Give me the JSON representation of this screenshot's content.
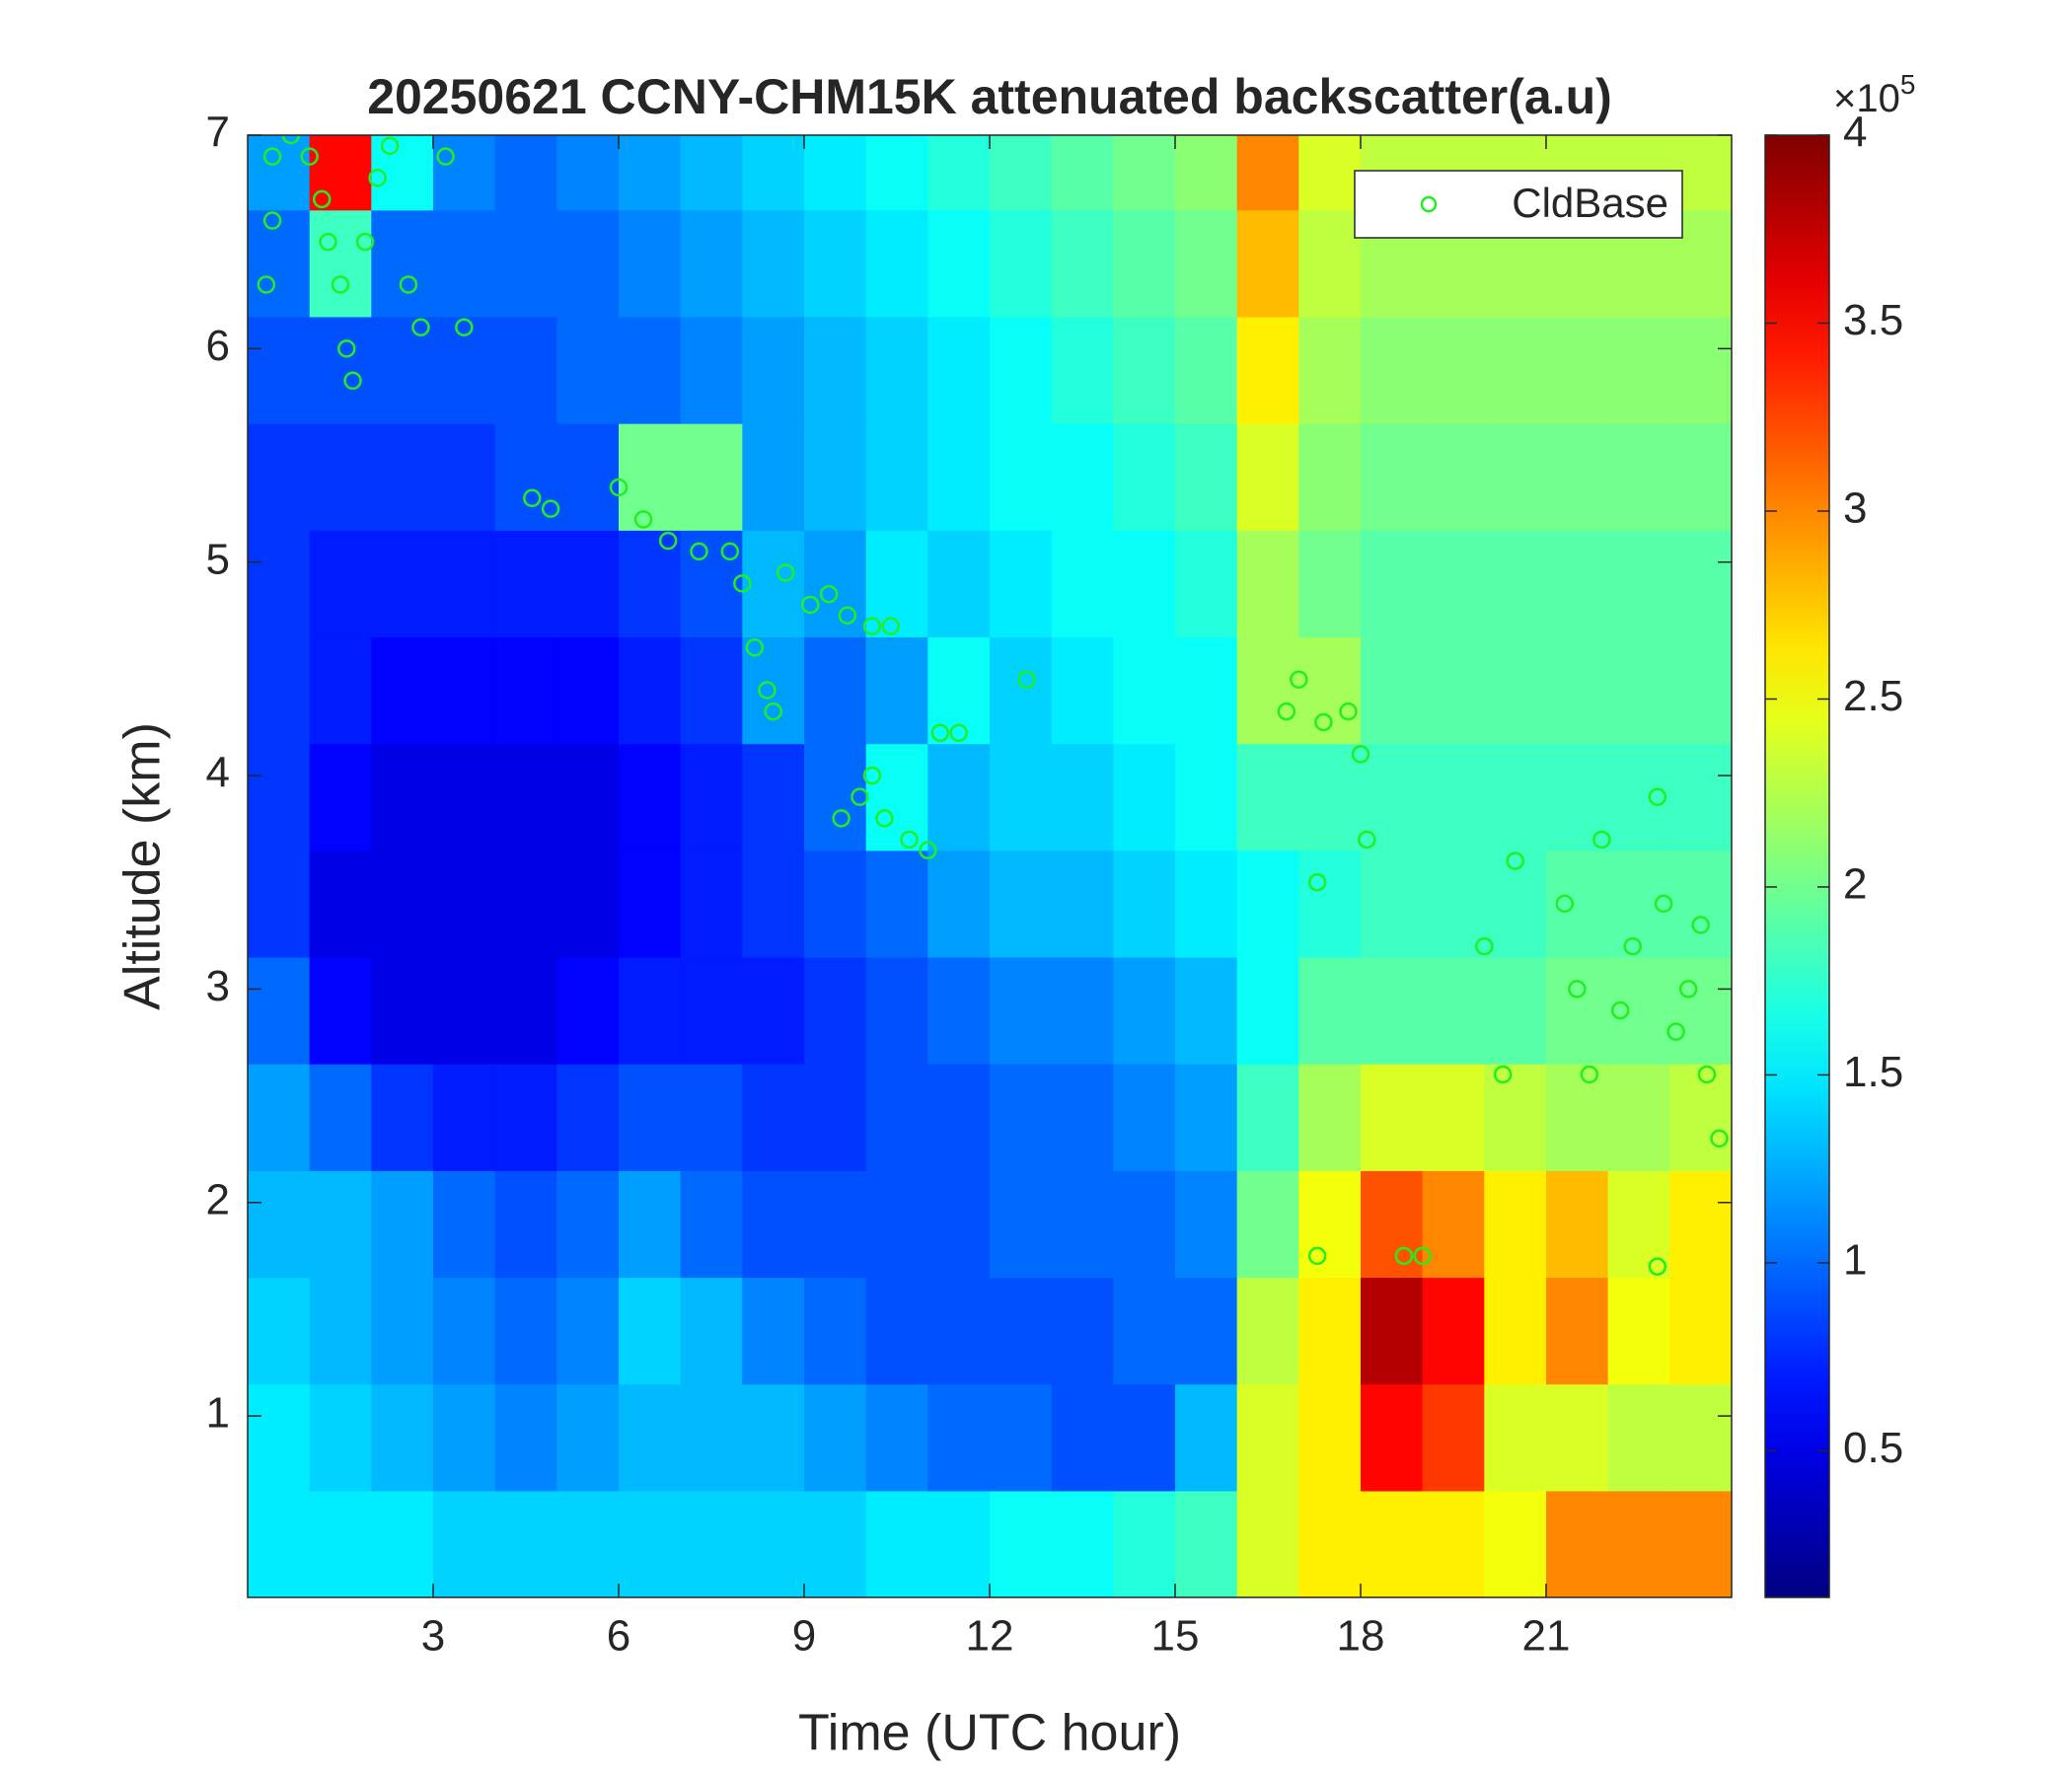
{
  "chart_data": {
    "type": "heatmap",
    "title": "20250621 CCNY-CHM15K attenuated backscatter(a.u)",
    "xlabel": "Time (UTC hour)",
    "ylabel": "Altitude (km)",
    "xlim": [
      0,
      24
    ],
    "xticks": [
      3,
      6,
      9,
      12,
      15,
      18,
      21
    ],
    "ylim": [
      0.15,
      7
    ],
    "yticks": [
      1,
      2,
      3,
      4,
      5,
      6,
      7
    ],
    "colormap": "jet",
    "clim": [
      0.11,
      4
    ],
    "cticks": [
      0.5,
      1,
      1.5,
      2,
      2.5,
      3,
      3.5,
      4
    ],
    "colorbar_multiplier": {
      "base": "×10",
      "exponent": "5"
    },
    "legend": "northeast",
    "heatmap": {
      "x": [
        0.5,
        1.5,
        2.5,
        3.5,
        4.5,
        5.5,
        6.5,
        7.5,
        8.5,
        9.5,
        10.5,
        11.5,
        12.5,
        13.5,
        14.5,
        15.5,
        16.5,
        17.5,
        18.5,
        19.5,
        20.5,
        21.5,
        22.5,
        23.5
      ],
      "y": [
        0.4,
        0.9,
        1.4,
        1.9,
        2.4,
        2.9,
        3.4,
        3.9,
        4.4,
        4.9,
        5.4,
        5.9,
        6.4,
        6.9
      ],
      "z": [
        [
          1.5,
          1.5,
          1.5,
          1.4,
          1.4,
          1.4,
          1.4,
          1.4,
          1.4,
          1.4,
          1.5,
          1.5,
          1.6,
          1.6,
          1.7,
          1.8,
          2.4,
          2.6,
          2.6,
          2.6,
          2.5,
          3.0,
          3.0,
          3.0
        ],
        [
          1.5,
          1.4,
          1.3,
          1.2,
          1.1,
          1.2,
          1.3,
          1.3,
          1.3,
          1.2,
          1.1,
          1.0,
          1.0,
          0.9,
          0.9,
          1.3,
          2.4,
          2.6,
          3.5,
          3.3,
          2.4,
          2.4,
          2.3,
          2.3
        ],
        [
          1.4,
          1.3,
          1.2,
          1.1,
          1.0,
          1.1,
          1.4,
          1.3,
          1.1,
          1.0,
          0.9,
          0.9,
          0.9,
          0.9,
          1.0,
          1.0,
          2.3,
          2.6,
          3.8,
          3.5,
          2.6,
          3.0,
          2.5,
          2.6
        ],
        [
          1.3,
          1.3,
          1.2,
          1.0,
          0.9,
          1.0,
          1.2,
          1.0,
          0.9,
          0.9,
          0.9,
          0.9,
          1.0,
          1.0,
          1.0,
          1.1,
          2.0,
          2.5,
          3.2,
          3.0,
          2.6,
          2.8,
          2.4,
          2.6
        ],
        [
          1.2,
          1.0,
          0.8,
          0.7,
          0.7,
          0.8,
          0.9,
          0.9,
          0.8,
          0.8,
          0.9,
          0.9,
          1.0,
          1.0,
          1.1,
          1.2,
          1.8,
          2.2,
          2.4,
          2.4,
          2.3,
          2.2,
          2.2,
          2.3
        ],
        [
          1.0,
          0.6,
          0.5,
          0.5,
          0.5,
          0.6,
          0.7,
          0.7,
          0.7,
          0.8,
          0.9,
          1.0,
          1.1,
          1.1,
          1.2,
          1.3,
          1.6,
          1.9,
          1.9,
          1.9,
          1.9,
          2.0,
          2.0,
          2.0
        ],
        [
          0.8,
          0.5,
          0.5,
          0.5,
          0.5,
          0.5,
          0.6,
          0.7,
          0.8,
          0.9,
          1.0,
          1.2,
          1.3,
          1.3,
          1.4,
          1.5,
          1.6,
          1.7,
          1.8,
          1.8,
          1.8,
          1.9,
          1.9,
          1.9
        ],
        [
          0.8,
          0.6,
          0.5,
          0.5,
          0.5,
          0.5,
          0.6,
          0.7,
          0.8,
          1.0,
          1.6,
          1.3,
          1.4,
          1.4,
          1.5,
          1.6,
          1.8,
          1.8,
          1.8,
          1.8,
          1.8,
          1.8,
          1.8,
          1.8
        ],
        [
          0.8,
          0.7,
          0.6,
          0.6,
          0.6,
          0.6,
          0.7,
          0.8,
          1.2,
          1.0,
          1.2,
          1.6,
          1.4,
          1.5,
          1.6,
          1.6,
          2.2,
          2.2,
          1.9,
          1.9,
          1.9,
          1.9,
          1.9,
          1.9
        ],
        [
          0.8,
          0.7,
          0.7,
          0.7,
          0.7,
          0.7,
          0.8,
          0.9,
          1.3,
          1.2,
          1.5,
          1.4,
          1.5,
          1.6,
          1.6,
          1.7,
          2.2,
          2.0,
          1.9,
          1.9,
          1.9,
          1.9,
          1.9,
          1.9
        ],
        [
          0.8,
          0.8,
          0.8,
          0.8,
          0.9,
          0.9,
          2.0,
          2.0,
          1.2,
          1.3,
          1.4,
          1.5,
          1.6,
          1.6,
          1.7,
          1.8,
          2.4,
          2.1,
          2.0,
          2.0,
          2.0,
          2.0,
          2.0,
          2.0
        ],
        [
          0.9,
          0.9,
          0.9,
          0.9,
          0.9,
          1.0,
          1.0,
          1.1,
          1.2,
          1.3,
          1.4,
          1.5,
          1.6,
          1.7,
          1.8,
          1.9,
          2.6,
          2.2,
          2.1,
          2.1,
          2.1,
          2.1,
          2.1,
          2.1
        ],
        [
          1.0,
          1.8,
          1.0,
          1.0,
          1.0,
          1.0,
          1.1,
          1.2,
          1.3,
          1.4,
          1.5,
          1.6,
          1.7,
          1.8,
          1.9,
          2.0,
          2.8,
          2.3,
          2.2,
          2.2,
          2.2,
          2.2,
          2.2,
          2.2
        ],
        [
          1.2,
          3.5,
          1.6,
          1.1,
          1.0,
          1.1,
          1.2,
          1.3,
          1.4,
          1.5,
          1.6,
          1.7,
          1.8,
          1.9,
          2.0,
          2.1,
          3.0,
          2.4,
          2.3,
          2.3,
          2.3,
          2.3,
          2.3,
          2.3
        ]
      ]
    },
    "series": [
      {
        "name": "CldBase",
        "type": "scatter",
        "color": "#22ee22",
        "x": [
          0.3,
          0.4,
          0.4,
          0.7,
          1.0,
          1.2,
          1.3,
          1.5,
          1.6,
          1.7,
          1.9,
          2.1,
          2.3,
          2.6,
          2.8,
          3.2,
          3.5,
          4.6,
          4.9,
          6.0,
          6.4,
          6.8,
          7.3,
          7.8,
          8.0,
          8.2,
          8.4,
          8.5,
          8.7,
          9.1,
          9.4,
          9.7,
          10.1,
          10.4,
          9.6,
          9.9,
          10.1,
          10.3,
          10.7,
          11.0,
          11.2,
          11.5,
          12.6,
          16.8,
          17.0,
          17.3,
          17.4,
          17.8,
          18.0,
          18.1,
          18.7,
          19.0,
          20.0,
          20.3,
          20.5,
          21.3,
          21.5,
          21.7,
          21.9,
          22.2,
          22.4,
          22.8,
          22.9,
          23.1,
          23.3,
          23.5,
          23.6,
          23.8,
          17.3,
          22.8
        ],
        "values": [
          6.3,
          6.6,
          6.9,
          7.0,
          6.9,
          6.7,
          6.5,
          6.3,
          6.0,
          5.85,
          6.5,
          6.8,
          6.95,
          6.3,
          6.1,
          6.9,
          6.1,
          5.3,
          5.25,
          5.35,
          5.2,
          5.1,
          5.05,
          5.05,
          4.9,
          4.6,
          4.4,
          4.3,
          4.95,
          4.8,
          4.85,
          4.75,
          4.7,
          4.7,
          3.8,
          3.9,
          4.0,
          3.8,
          3.7,
          3.65,
          4.2,
          4.2,
          4.45,
          4.3,
          4.45,
          3.5,
          4.25,
          4.3,
          4.1,
          3.7,
          1.75,
          1.75,
          3.2,
          2.6,
          3.6,
          3.4,
          3.0,
          2.6,
          3.7,
          2.9,
          3.2,
          3.9,
          3.4,
          2.8,
          3.0,
          3.3,
          2.6,
          2.3,
          1.75,
          1.7
        ]
      }
    ]
  }
}
